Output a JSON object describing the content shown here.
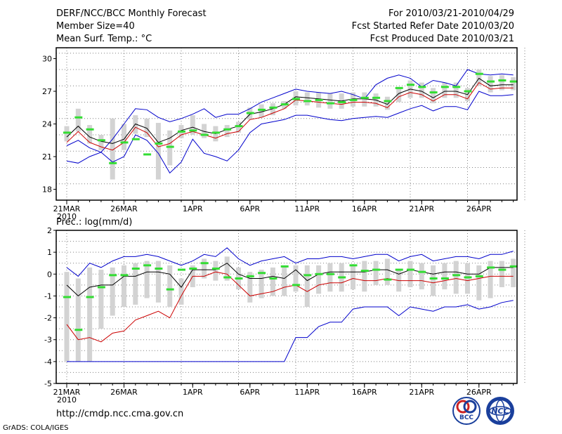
{
  "header": {
    "title": "DERF/NCC/BCC Monthly Forecast",
    "member_size": "Member Size=40",
    "variable": "Mean Surf. Temp.: °C",
    "period": "For 2010/03/21-2010/04/29",
    "start_date": "Fcst Started Refer Date 2010/03/20",
    "produced_date": "Fcst Produced Date 2010/03/21"
  },
  "footer": {
    "url": "http://cmdp.ncc.cma.gov.cn",
    "credit": "GrADS: COLA/IGES",
    "logo_bcc": "BCC",
    "logo_ncc": "NCC"
  },
  "colors": {
    "max_min": "#0000cc",
    "mean": "#000000",
    "median": "#cc0000",
    "box": "#d3d3d3",
    "obs": "#33dd33",
    "grid": "#808080"
  },
  "chart_data": [
    {
      "type": "line",
      "title": "Mean Surf. Temp.: °C",
      "x_tick_labels": [
        "21MAR",
        "26MAR",
        "1APR",
        "6APR",
        "11APR",
        "16APR",
        "21APR",
        "26APR"
      ],
      "x_tick_year": "2010",
      "x_tick_index": [
        0,
        5,
        11,
        16,
        21,
        26,
        31,
        36
      ],
      "ylim": [
        17,
        31
      ],
      "yticks": [
        18,
        21,
        24,
        27,
        30
      ],
      "n_days": 40,
      "series": [
        {
          "name": "max",
          "values": [
            20.6,
            20.4,
            21.0,
            21.4,
            22.6,
            24.0,
            25.4,
            25.3,
            24.6,
            24.2,
            24.5,
            24.9,
            25.4,
            24.6,
            24.9,
            24.9,
            25.4,
            26.0,
            26.4,
            26.8,
            27.2,
            27.0,
            26.9,
            26.8,
            27.0,
            26.7,
            26.3,
            27.6,
            28.2,
            28.5,
            28.2,
            27.4,
            28.0,
            27.8,
            27.5,
            29.0,
            28.6,
            28.5,
            28.6,
            28.5
          ]
        },
        {
          "name": "mean",
          "values": [
            22.8,
            23.8,
            22.8,
            22.4,
            22.2,
            22.6,
            24.0,
            23.6,
            22.3,
            22.7,
            23.4,
            23.7,
            23.3,
            23.1,
            23.5,
            23.8,
            24.9,
            25.1,
            25.4,
            25.8,
            26.5,
            26.4,
            26.3,
            26.2,
            26.1,
            26.3,
            26.3,
            26.2,
            25.8,
            26.8,
            27.2,
            27.0,
            26.4,
            27.0,
            27.0,
            26.7,
            28.2,
            27.5,
            27.6,
            27.6
          ]
        },
        {
          "name": "median",
          "values": [
            22.3,
            23.3,
            22.3,
            21.9,
            21.6,
            22.3,
            23.7,
            23.2,
            21.9,
            22.2,
            23.0,
            23.3,
            23.0,
            22.7,
            23.1,
            23.3,
            24.4,
            24.6,
            25.0,
            25.4,
            26.2,
            26.1,
            26.0,
            25.9,
            25.8,
            26.0,
            26.0,
            25.9,
            25.5,
            26.5,
            26.9,
            26.7,
            26.1,
            26.7,
            26.7,
            26.3,
            27.8,
            27.2,
            27.3,
            27.3
          ]
        },
        {
          "name": "min",
          "values": [
            22.0,
            22.5,
            21.8,
            21.4,
            20.5,
            21.0,
            23.0,
            22.5,
            21.3,
            19.5,
            20.5,
            22.6,
            21.3,
            21.0,
            20.6,
            21.6,
            23.2,
            24.0,
            24.2,
            24.4,
            24.8,
            24.8,
            24.6,
            24.4,
            24.3,
            24.5,
            24.6,
            24.7,
            24.6,
            25.0,
            25.4,
            25.7,
            25.2,
            25.6,
            25.6,
            25.3,
            27.0,
            26.6,
            26.6,
            26.7
          ]
        },
        {
          "name": "p25",
          "values": [
            22.4,
            23.3,
            22.2,
            21.6,
            18.9,
            21.6,
            23.1,
            22.8,
            18.9,
            20.2,
            22.7,
            23.0,
            22.7,
            22.4,
            22.8,
            23.2,
            24.4,
            24.6,
            24.8,
            25.4,
            25.7,
            25.7,
            25.5,
            25.4,
            25.4,
            25.6,
            25.6,
            25.6,
            25.3,
            26.0,
            26.4,
            26.4,
            25.9,
            26.4,
            26.4,
            26.1,
            27.5,
            26.9,
            27.1,
            27.1
          ]
        },
        {
          "name": "p75",
          "values": [
            23.8,
            25.4,
            23.9,
            23.0,
            24.5,
            24.0,
            24.8,
            24.5,
            24.1,
            23.4,
            23.9,
            24.8,
            24.0,
            23.8,
            23.9,
            24.2,
            25.5,
            25.8,
            25.9,
            26.1,
            27.0,
            26.9,
            26.9,
            26.8,
            26.8,
            26.9,
            26.9,
            26.8,
            26.5,
            27.4,
            28.0,
            27.8,
            27.3,
            27.8,
            27.8,
            27.3,
            29.0,
            28.4,
            28.5,
            28.3
          ]
        },
        {
          "name": "observed",
          "values": [
            23.2,
            24.6,
            23.5,
            22.5,
            20.4,
            22.3,
            22.6,
            21.2,
            22.2,
            21.9,
            23.3,
            23.4,
            23.0,
            23.2,
            23.5,
            23.8,
            25.0,
            25.3,
            25.5,
            25.8,
            26.3,
            26.1,
            26.2,
            25.9,
            26.0,
            26.2,
            26.4,
            26.4,
            26.1,
            27.3,
            27.6,
            27.4,
            26.9,
            27.4,
            27.4,
            27.0,
            28.6,
            27.9,
            28.0,
            27.9
          ]
        }
      ]
    },
    {
      "type": "line",
      "title": "Prec.: log(mm/d)",
      "x_tick_labels": [
        "21MAR",
        "26MAR",
        "1APR",
        "6APR",
        "11APR",
        "16APR",
        "21APR",
        "26APR"
      ],
      "x_tick_year": "2010",
      "x_tick_index": [
        0,
        5,
        11,
        16,
        21,
        26,
        31,
        36
      ],
      "ylim": [
        -5,
        2
      ],
      "yticks": [
        -5,
        -4,
        -3,
        -2,
        -1,
        0,
        1,
        2
      ],
      "n_days": 40,
      "series": [
        {
          "name": "max",
          "values": [
            0.3,
            -0.1,
            0.5,
            0.3,
            0.6,
            0.8,
            0.8,
            0.9,
            0.8,
            0.6,
            0.4,
            0.6,
            0.9,
            0.8,
            1.2,
            0.7,
            0.4,
            0.6,
            0.7,
            0.8,
            0.5,
            0.7,
            0.7,
            0.8,
            0.8,
            0.7,
            0.8,
            0.9,
            0.9,
            0.6,
            0.8,
            0.9,
            0.6,
            0.7,
            0.8,
            0.8,
            0.7,
            0.9,
            0.9,
            1.05
          ]
        },
        {
          "name": "mean",
          "values": [
            -0.5,
            -1.0,
            -0.6,
            -0.5,
            -0.5,
            -0.1,
            -0.1,
            0.1,
            0.1,
            0.0,
            -0.6,
            0.2,
            0.2,
            0.2,
            0.5,
            0.0,
            -0.2,
            -0.2,
            -0.1,
            -0.2,
            0.2,
            -0.3,
            0.0,
            0.1,
            0.1,
            0.1,
            0.1,
            0.2,
            0.2,
            0.0,
            0.2,
            0.1,
            0.0,
            0.1,
            0.1,
            0.0,
            0.0,
            0.3,
            0.3,
            0.3
          ]
        },
        {
          "name": "median",
          "values": [
            -2.3,
            -3.0,
            -2.9,
            -3.1,
            -2.7,
            -2.6,
            -2.1,
            -1.9,
            -1.7,
            -2.0,
            -1.0,
            -0.1,
            -0.1,
            0.1,
            0.0,
            -0.5,
            -1.0,
            -0.9,
            -0.8,
            -0.6,
            -0.5,
            -0.8,
            -0.5,
            -0.4,
            -0.4,
            -0.2,
            -0.3,
            -0.3,
            -0.2,
            -0.3,
            -0.3,
            -0.3,
            -0.4,
            -0.3,
            -0.2,
            -0.3,
            -0.2,
            -0.1,
            -0.1,
            -0.1
          ]
        },
        {
          "name": "min",
          "values": [
            -4.0,
            -4.0,
            -4.0,
            -4.0,
            -4.0,
            -4.0,
            -4.0,
            -4.0,
            -4.0,
            -4.0,
            -4.0,
            -4.0,
            -4.0,
            -4.0,
            -4.0,
            -4.0,
            -4.0,
            -4.0,
            -4.0,
            -4.0,
            -2.9,
            -2.9,
            -2.4,
            -2.2,
            -2.2,
            -1.6,
            -1.5,
            -1.5,
            -1.5,
            -1.9,
            -1.5,
            -1.6,
            -1.7,
            -1.5,
            -1.5,
            -1.4,
            -1.6,
            -1.5,
            -1.3,
            -1.2
          ]
        },
        {
          "name": "p25",
          "values": [
            -4.0,
            -4.0,
            -4.0,
            -2.5,
            -1.9,
            -1.5,
            -1.4,
            -1.1,
            -1.3,
            -1.5,
            -1.4,
            -0.6,
            -0.2,
            -0.3,
            -0.3,
            -0.7,
            -1.3,
            -1.1,
            -1.0,
            -1.0,
            -0.8,
            -1.5,
            -0.9,
            -0.8,
            -0.8,
            -0.7,
            -0.8,
            -0.5,
            -0.5,
            -0.8,
            -0.6,
            -0.7,
            -1.0,
            -0.7,
            -0.9,
            -0.9,
            -1.2,
            -1.1,
            -0.6,
            -0.6
          ]
        },
        {
          "name": "p75",
          "values": [
            0.1,
            -0.2,
            0.3,
            0.2,
            0.3,
            0.4,
            0.5,
            0.6,
            0.6,
            0.4,
            -0.2,
            0.4,
            0.7,
            0.6,
            0.8,
            0.3,
            0.1,
            0.2,
            0.3,
            0.4,
            0.4,
            0.4,
            0.4,
            0.5,
            0.5,
            0.4,
            0.6,
            0.6,
            0.7,
            0.2,
            0.6,
            0.5,
            0.4,
            0.5,
            0.6,
            0.5,
            0.4,
            0.6,
            0.6,
            0.7
          ]
        },
        {
          "name": "observed",
          "values": [
            -1.05,
            -2.55,
            -1.05,
            -0.6,
            -0.05,
            -0.05,
            0.25,
            0.4,
            0.25,
            -0.7,
            0.2,
            0.25,
            0.5,
            0.25,
            -0.15,
            -0.2,
            -0.1,
            0.05,
            -0.2,
            0.35,
            -0.5,
            -0.05,
            0.0,
            0.0,
            -0.15,
            0.4,
            0.15,
            0.2,
            -0.25,
            0.2,
            0.2,
            0.1,
            -0.2,
            -0.2,
            -0.05,
            -0.15,
            -0.1,
            0.3,
            0.2,
            0.35
          ]
        }
      ]
    }
  ]
}
